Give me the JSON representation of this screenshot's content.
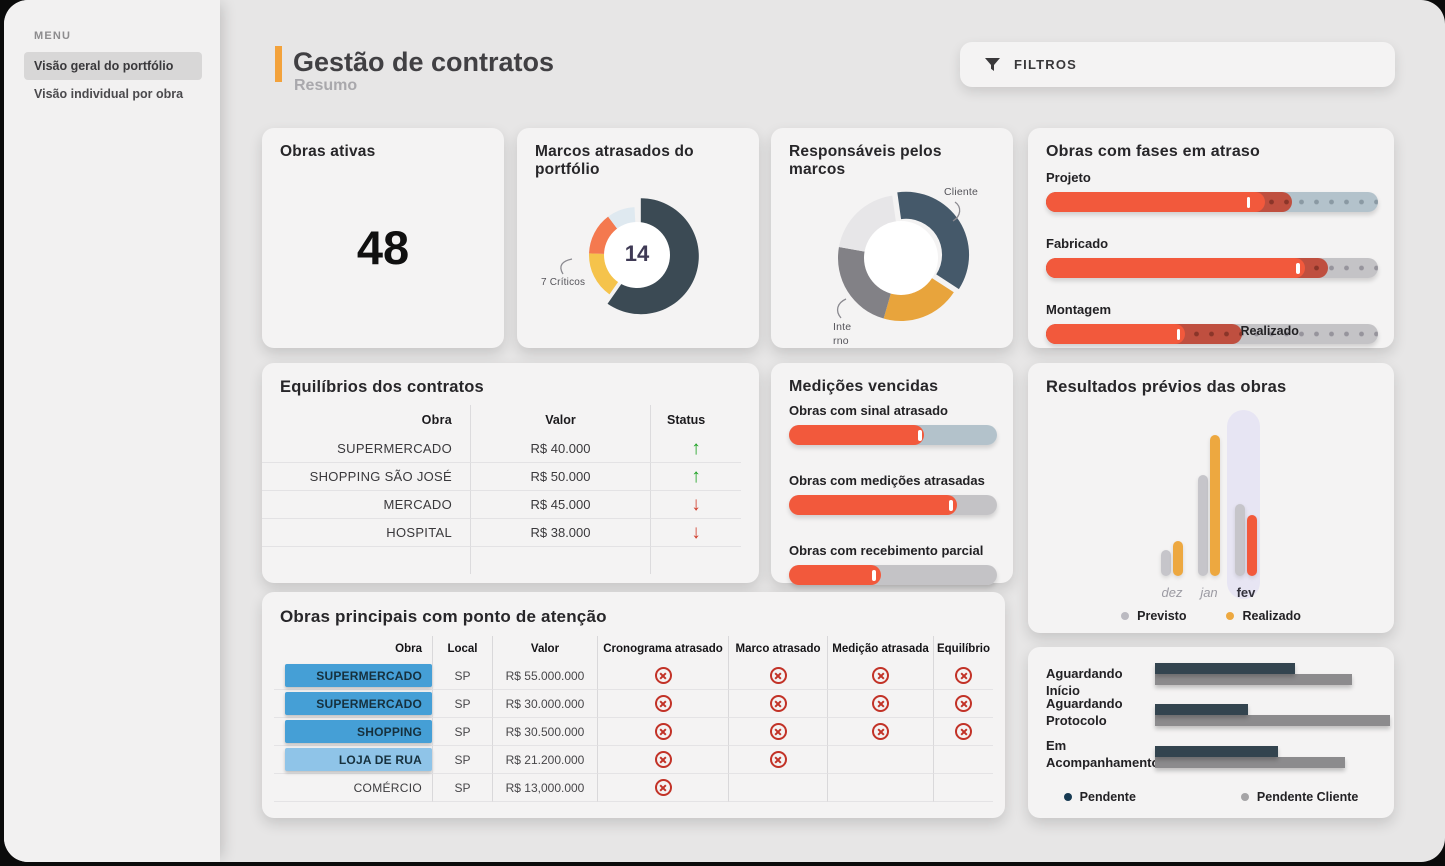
{
  "sidebar": {
    "menu_label": "MENU",
    "items": [
      {
        "label": "Visão geral do portfólio",
        "active": true
      },
      {
        "label": "Visão individual por obra",
        "active": false
      }
    ]
  },
  "header": {
    "title": "Gestão de contratos",
    "subtitle": "Resumo",
    "accent_color": "#f3a23b",
    "filters_label": "FILTROS"
  },
  "cards": {
    "obras_ativas": {
      "title": "Obras ativas",
      "value": "48"
    },
    "marcos_atrasados": {
      "title": "Marcos atrasados do portfólio",
      "center_value": "14",
      "callout": "7 Críticos",
      "chart": {
        "type": "donut",
        "segments": [
          {
            "name": "atrasados",
            "color": "#3b4a54",
            "start_deg": 0,
            "end_deg": 215,
            "explode": true
          },
          {
            "name": "alerta",
            "color": "#f5c34b",
            "start_deg": 215,
            "end_deg": 272,
            "explode": false
          },
          {
            "name": "criticos",
            "color": "#f4794f",
            "start_deg": 272,
            "end_deg": 323,
            "explode": false
          },
          {
            "name": "outros",
            "color": "#dfe9f0",
            "start_deg": 323,
            "end_deg": 357,
            "explode": false
          }
        ]
      }
    },
    "responsaveis": {
      "title": "Responsáveis pelos marcos",
      "label_cliente": "Cliente",
      "label_interno_lines": [
        "Inte",
        "rno"
      ],
      "chart": {
        "type": "donut",
        "segments": [
          {
            "name": "cliente",
            "color": "#45596a",
            "start_deg": -8,
            "end_deg": 123,
            "explode": true
          },
          {
            "name": "realizado",
            "color": "#e8a43c",
            "start_deg": 123,
            "end_deg": 196,
            "explode": false
          },
          {
            "name": "interno",
            "color": "#828186",
            "start_deg": 196,
            "end_deg": 280,
            "explode": false
          },
          {
            "name": "outros",
            "color": "#e7e6e8",
            "start_deg": 280,
            "end_deg": 352,
            "explode": false
          }
        ]
      }
    },
    "fases_atraso": {
      "title": "Obras com fases em atraso",
      "bars": [
        {
          "label": "Projeto",
          "fill_pct": 66,
          "tick_pct": 61,
          "overrun_pct": 74,
          "track_color": "#b3c2cb",
          "dot_color": "#8a99a3"
        },
        {
          "label": "Fabricado",
          "fill_pct": 78,
          "tick_pct": 76,
          "overrun_pct": 85,
          "track_color": "#c4c3c6",
          "dot_color": "#96949c"
        },
        {
          "label": "Montagem",
          "fill_pct": 42,
          "tick_pct": 40,
          "overrun_pct": 59,
          "track_color": "#c4c3c6",
          "dot_color": "#96949c"
        }
      ],
      "fill_color": "#f2593c",
      "overrun_color": "#bf4f3f",
      "legend": [
        {
          "label": "Previsto",
          "color": "#b3c2cb"
        },
        {
          "label": "Realizado",
          "color": "#f2593c"
        }
      ]
    },
    "equilibrios": {
      "title": "Equilíbrios dos contratos",
      "columns": [
        "Obra",
        "Valor",
        "Status"
      ],
      "rows": [
        {
          "obra": "SUPERMERCADO",
          "valor": "R$ 40.000",
          "status": "up"
        },
        {
          "obra": "SHOPPING SÃO JOSÉ",
          "valor": "R$ 50.000",
          "status": "up"
        },
        {
          "obra": "MERCADO",
          "valor": "R$ 45.000",
          "status": "down"
        },
        {
          "obra": "HOSPITAL",
          "valor": "R$ 38.000",
          "status": "down"
        }
      ]
    },
    "medicoes": {
      "title": "Medições vencidas",
      "bars": [
        {
          "label": "Obras com sinal atrasado",
          "fill_pct": 65,
          "tick_pct": 63,
          "track_color": "#b3c2cb"
        },
        {
          "label": "Obras com medições atrasadas",
          "fill_pct": 81,
          "tick_pct": 78,
          "track_color": "#c4c3c6"
        },
        {
          "label": "Obras com recebimento parcial",
          "fill_pct": 44,
          "tick_pct": 41,
          "track_color": "#c4c3c6"
        }
      ],
      "fill_color": "#f2593c"
    },
    "resultados": {
      "title": "Resultados prévios das obras",
      "chart": {
        "type": "bar",
        "months": [
          {
            "label": "dez",
            "previsto": 26,
            "realizado": 35,
            "realizado_color": "#eda840",
            "current": false
          },
          {
            "label": "jan",
            "previsto": 101,
            "realizado": 141,
            "realizado_color": "#eda840",
            "current": false
          },
          {
            "label": "fev",
            "previsto": 72,
            "realizado": 61,
            "realizado_color": "#f2593c",
            "current": true
          }
        ],
        "previsto_color": "#c6c5ca",
        "highlight_color": "#e7e5f3"
      },
      "legend": [
        {
          "label": "Previsto",
          "color": "#bbbac1"
        },
        {
          "label": "Realizado",
          "color": "#eda840"
        }
      ]
    },
    "obras_principais": {
      "title": "Obras principais com ponto de atenção",
      "columns": [
        "Obra",
        "Local",
        "Valor",
        "Cronograma atrasado",
        "Marco atrasado",
        "Medição atrasada",
        "Equilíbrio"
      ],
      "rows": [
        {
          "obra": "SUPERMERCADO",
          "pill_color": "#459fd6",
          "local": "SP",
          "valor": "R$ 55.000.000",
          "flags": [
            1,
            1,
            1,
            1
          ]
        },
        {
          "obra": "SUPERMERCADO",
          "pill_color": "#459fd6",
          "local": "SP",
          "valor": "R$ 30.000.000",
          "flags": [
            1,
            1,
            1,
            1
          ]
        },
        {
          "obra": "SHOPPING",
          "pill_color": "#459fd6",
          "local": "SP",
          "valor": "R$ 30.500.000",
          "flags": [
            1,
            1,
            1,
            1
          ]
        },
        {
          "obra": "LOJA DE RUA",
          "pill_color": "#8fc4e8",
          "local": "SP",
          "valor": "R$ 21.200.000",
          "flags": [
            1,
            1,
            0,
            0
          ]
        },
        {
          "obra": "COMÉRCIO",
          "pill_color": null,
          "local": "SP",
          "valor": "R$ 13,000.000",
          "flags": [
            1,
            0,
            0,
            0
          ]
        }
      ]
    },
    "status_pendencias": {
      "rows": [
        {
          "label": "Aguardando Início",
          "pendente": 140,
          "pendente_cliente": 197
        },
        {
          "label": "Aguardando Protocolo",
          "pendente": 93,
          "pendente_cliente": 235
        },
        {
          "label": "Em Acompanhamento",
          "pendente": 123,
          "pendente_cliente": 190
        }
      ],
      "legend": [
        {
          "label": "Pendente",
          "color": "#173a52"
        },
        {
          "label": "Pendente Cliente",
          "color": "#a5a4a6"
        }
      ]
    }
  }
}
